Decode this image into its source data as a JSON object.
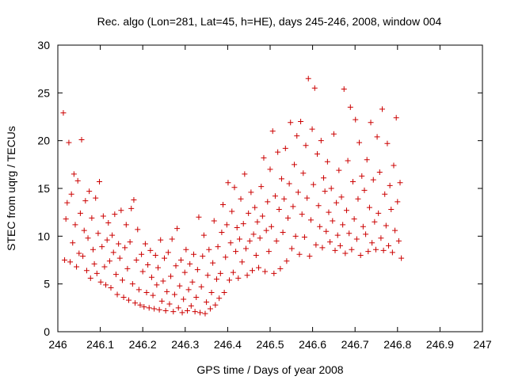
{
  "chart_data": {
    "type": "scatter",
    "title": "Rec. algo (Lon=281, Lat=45, h=HE), days 245-246, 2008, window 004",
    "xlabel": "GPS time / Days of year 2008",
    "ylabel": "STEC from uqrg / TECUs",
    "xlim": [
      246,
      247
    ],
    "ylim": [
      0,
      30
    ],
    "xticks": [
      "246",
      "246.1",
      "246.2",
      "246.3",
      "246.4",
      "246.5",
      "246.6",
      "246.7",
      "246.8",
      "246.9",
      "247"
    ],
    "yticks": [
      "0",
      "5",
      "10",
      "15",
      "20",
      "25",
      "30"
    ],
    "marker": "+",
    "color": "#cc0000",
    "grid": false,
    "points": [
      [
        246.013,
        22.9
      ],
      [
        246.016,
        7.5
      ],
      [
        246.019,
        11.8
      ],
      [
        246.022,
        13.5
      ],
      [
        246.026,
        19.8
      ],
      [
        246.029,
        7.3
      ],
      [
        246.032,
        14.4
      ],
      [
        246.035,
        9.3
      ],
      [
        246.038,
        16.5
      ],
      [
        246.041,
        11.2
      ],
      [
        246.044,
        6.8
      ],
      [
        246.047,
        15.8
      ],
      [
        246.05,
        8.2
      ],
      [
        246.053,
        12.4
      ],
      [
        246.056,
        20.1
      ],
      [
        246.059,
        7.9
      ],
      [
        246.062,
        10.6
      ],
      [
        246.065,
        13.7
      ],
      [
        246.068,
        6.4
      ],
      [
        246.071,
        9.8
      ],
      [
        246.074,
        14.7
      ],
      [
        246.077,
        5.6
      ],
      [
        246.08,
        11.9
      ],
      [
        246.083,
        8.6
      ],
      [
        246.086,
        7.1
      ],
      [
        246.089,
        14.0
      ],
      [
        246.092,
        6.1
      ],
      [
        246.095,
        10.3
      ],
      [
        246.098,
        15.7
      ],
      [
        246.101,
        5.2
      ],
      [
        246.104,
        8.9
      ],
      [
        246.107,
        12.1
      ],
      [
        246.11,
        6.8
      ],
      [
        246.113,
        4.9
      ],
      [
        246.116,
        9.6
      ],
      [
        246.119,
        11.4
      ],
      [
        246.122,
        7.4
      ],
      [
        246.125,
        4.6
      ],
      [
        246.128,
        10.1
      ],
      [
        246.131,
        8.3
      ],
      [
        246.134,
        12.3
      ],
      [
        246.137,
        6.0
      ],
      [
        246.14,
        3.9
      ],
      [
        246.143,
        9.2
      ],
      [
        246.146,
        7.7
      ],
      [
        246.149,
        12.7
      ],
      [
        246.152,
        5.4
      ],
      [
        246.155,
        3.6
      ],
      [
        246.158,
        8.8
      ],
      [
        246.161,
        11.2
      ],
      [
        246.164,
        6.6
      ],
      [
        246.167,
        3.3
      ],
      [
        246.17,
        9.4
      ],
      [
        246.173,
        12.9
      ],
      [
        246.176,
        5.0
      ],
      [
        246.179,
        13.8
      ],
      [
        246.182,
        3.0
      ],
      [
        246.185,
        7.5
      ],
      [
        246.188,
        10.7
      ],
      [
        246.191,
        4.4
      ],
      [
        246.194,
        2.8
      ],
      [
        246.197,
        8.1
      ],
      [
        246.2,
        6.3
      ],
      [
        246.203,
        2.6
      ],
      [
        246.206,
        9.2
      ],
      [
        246.209,
        4.1
      ],
      [
        246.212,
        7.0
      ],
      [
        246.215,
        2.5
      ],
      [
        246.218,
        8.5
      ],
      [
        246.221,
        5.7
      ],
      [
        246.224,
        3.8
      ],
      [
        246.227,
        2.4
      ],
      [
        246.23,
        8.0
      ],
      [
        246.233,
        4.9
      ],
      [
        246.236,
        6.7
      ],
      [
        246.239,
        2.3
      ],
      [
        246.242,
        9.6
      ],
      [
        246.245,
        3.2
      ],
      [
        246.248,
        5.3
      ],
      [
        246.251,
        7.7
      ],
      [
        246.254,
        2.2
      ],
      [
        246.257,
        4.2
      ],
      [
        246.26,
        8.3
      ],
      [
        246.263,
        2.9
      ],
      [
        246.266,
        5.8
      ],
      [
        246.269,
        9.7
      ],
      [
        246.272,
        2.1
      ],
      [
        246.275,
        3.9
      ],
      [
        246.278,
        6.9
      ],
      [
        246.281,
        10.8
      ],
      [
        246.284,
        2.5
      ],
      [
        246.287,
        4.8
      ],
      [
        246.29,
        7.5
      ],
      [
        246.293,
        2.0
      ],
      [
        246.296,
        3.4
      ],
      [
        246.299,
        6.2
      ],
      [
        246.302,
        8.6
      ],
      [
        246.305,
        2.2
      ],
      [
        246.308,
        4.4
      ],
      [
        246.311,
        7.1
      ],
      [
        246.314,
        2.7
      ],
      [
        246.317,
        5.2
      ],
      [
        246.32,
        8.1
      ],
      [
        246.323,
        2.1
      ],
      [
        246.326,
        3.6
      ],
      [
        246.329,
        6.5
      ],
      [
        246.332,
        12.0
      ],
      [
        246.335,
        2.0
      ],
      [
        246.338,
        4.7
      ],
      [
        246.341,
        7.9
      ],
      [
        246.344,
        10.1
      ],
      [
        246.347,
        1.9
      ],
      [
        246.35,
        3.1
      ],
      [
        246.353,
        5.9
      ],
      [
        246.356,
        8.6
      ],
      [
        246.359,
        2.4
      ],
      [
        246.362,
        4.1
      ],
      [
        246.365,
        7.2
      ],
      [
        246.368,
        11.6
      ],
      [
        246.371,
        2.8
      ],
      [
        246.374,
        5.5
      ],
      [
        246.377,
        8.9
      ],
      [
        246.38,
        3.5
      ],
      [
        246.383,
        6.1
      ],
      [
        246.386,
        10.4
      ],
      [
        246.389,
        13.3
      ],
      [
        246.392,
        4.1
      ],
      [
        246.395,
        7.8
      ],
      [
        246.398,
        11.2
      ],
      [
        246.401,
        15.6
      ],
      [
        246.404,
        5.4
      ],
      [
        246.407,
        9.3
      ],
      [
        246.41,
        12.6
      ],
      [
        246.413,
        6.2
      ],
      [
        246.416,
        15.1
      ],
      [
        246.419,
        8.4
      ],
      [
        246.422,
        10.9
      ],
      [
        246.425,
        5.6
      ],
      [
        246.428,
        9.7
      ],
      [
        246.431,
        13.9
      ],
      [
        246.434,
        7.3
      ],
      [
        246.437,
        11.3
      ],
      [
        246.44,
        16.5
      ],
      [
        246.443,
        8.7
      ],
      [
        246.446,
        5.9
      ],
      [
        246.449,
        12.4
      ],
      [
        246.452,
        9.5
      ],
      [
        246.455,
        14.6
      ],
      [
        246.458,
        6.4
      ],
      [
        246.461,
        10.2
      ],
      [
        246.464,
        13.0
      ],
      [
        246.467,
        8.0
      ],
      [
        246.47,
        11.5
      ],
      [
        246.473,
        6.7
      ],
      [
        246.476,
        9.8
      ],
      [
        246.479,
        15.2
      ],
      [
        246.482,
        12.1
      ],
      [
        246.485,
        18.2
      ],
      [
        246.488,
        6.3
      ],
      [
        246.491,
        10.6
      ],
      [
        246.494,
        13.6
      ],
      [
        246.497,
        8.4
      ],
      [
        246.5,
        17.0
      ],
      [
        246.503,
        11.0
      ],
      [
        246.506,
        21.0
      ],
      [
        246.509,
        6.1
      ],
      [
        246.512,
        14.2
      ],
      [
        246.515,
        9.5
      ],
      [
        246.518,
        18.8
      ],
      [
        246.521,
        12.8
      ],
      [
        246.524,
        6.6
      ],
      [
        246.527,
        16.0
      ],
      [
        246.53,
        10.4
      ],
      [
        246.533,
        13.9
      ],
      [
        246.536,
        19.2
      ],
      [
        246.539,
        7.4
      ],
      [
        246.542,
        11.9
      ],
      [
        246.545,
        15.5
      ],
      [
        246.548,
        21.9
      ],
      [
        246.551,
        8.7
      ],
      [
        246.554,
        13.1
      ],
      [
        246.557,
        17.5
      ],
      [
        246.56,
        10.0
      ],
      [
        246.563,
        20.5
      ],
      [
        246.566,
        14.6
      ],
      [
        246.569,
        8.1
      ],
      [
        246.572,
        22.0
      ],
      [
        246.575,
        12.3
      ],
      [
        246.578,
        16.6
      ],
      [
        246.581,
        9.9
      ],
      [
        246.584,
        19.5
      ],
      [
        246.587,
        14.0
      ],
      [
        246.59,
        26.5
      ],
      [
        246.593,
        7.9
      ],
      [
        246.596,
        11.7
      ],
      [
        246.599,
        21.2
      ],
      [
        246.602,
        15.4
      ],
      [
        246.605,
        25.5
      ],
      [
        246.608,
        9.1
      ],
      [
        246.611,
        18.6
      ],
      [
        246.614,
        13.2
      ],
      [
        246.617,
        11.0
      ],
      [
        246.62,
        20.0
      ],
      [
        246.623,
        8.8
      ],
      [
        246.626,
        16.1
      ],
      [
        246.629,
        14.7
      ],
      [
        246.632,
        10.5
      ],
      [
        246.635,
        17.8
      ],
      [
        246.638,
        12.5
      ],
      [
        246.641,
        9.4
      ],
      [
        246.644,
        15.0
      ],
      [
        246.647,
        11.6
      ],
      [
        246.65,
        20.7
      ],
      [
        246.653,
        8.5
      ],
      [
        246.656,
        13.5
      ],
      [
        246.659,
        10.1
      ],
      [
        246.662,
        16.9
      ],
      [
        246.665,
        9.0
      ],
      [
        246.668,
        14.1
      ],
      [
        246.671,
        11.2
      ],
      [
        246.674,
        25.4
      ],
      [
        246.677,
        8.2
      ],
      [
        246.68,
        12.7
      ],
      [
        246.683,
        17.9
      ],
      [
        246.686,
        10.3
      ],
      [
        246.689,
        23.5
      ],
      [
        246.692,
        8.6
      ],
      [
        246.695,
        15.7
      ],
      [
        246.698,
        11.8
      ],
      [
        246.701,
        22.2
      ],
      [
        246.704,
        9.7
      ],
      [
        246.707,
        13.9
      ],
      [
        246.71,
        19.8
      ],
      [
        246.713,
        8.0
      ],
      [
        246.716,
        16.3
      ],
      [
        246.719,
        11.0
      ],
      [
        246.722,
        14.8
      ],
      [
        246.725,
        10.2
      ],
      [
        246.728,
        18.0
      ],
      [
        246.731,
        8.4
      ],
      [
        246.734,
        13.0
      ],
      [
        246.737,
        21.9
      ],
      [
        246.74,
        9.3
      ],
      [
        246.743,
        15.9
      ],
      [
        246.746,
        11.5
      ],
      [
        246.749,
        8.6
      ],
      [
        246.752,
        20.4
      ],
      [
        246.755,
        12.4
      ],
      [
        246.758,
        16.7
      ],
      [
        246.761,
        9.8
      ],
      [
        246.764,
        23.3
      ],
      [
        246.767,
        8.5
      ],
      [
        246.77,
        14.4
      ],
      [
        246.773,
        11.1
      ],
      [
        246.776,
        19.7
      ],
      [
        246.779,
        9.0
      ],
      [
        246.782,
        15.3
      ],
      [
        246.785,
        12.8
      ],
      [
        246.788,
        8.3
      ],
      [
        246.791,
        17.4
      ],
      [
        246.794,
        10.6
      ],
      [
        246.797,
        22.4
      ],
      [
        246.8,
        13.6
      ],
      [
        246.803,
        9.5
      ],
      [
        246.806,
        15.6
      ],
      [
        246.809,
        7.7
      ]
    ]
  }
}
